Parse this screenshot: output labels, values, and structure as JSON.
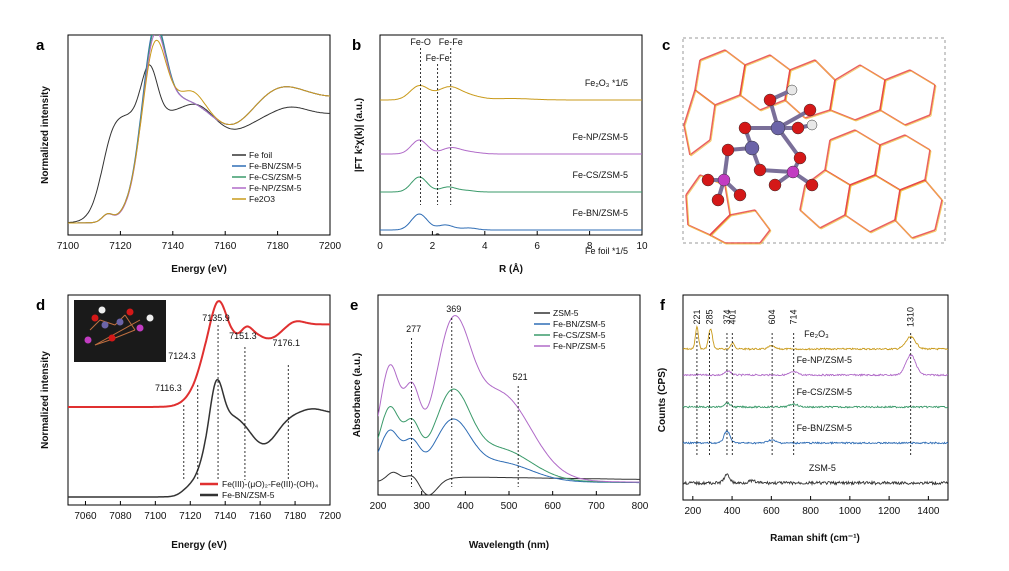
{
  "chart_data": [
    {
      "panel": "a",
      "type": "line",
      "xlabel": "Energy (eV)",
      "ylabel": "Normalized intensity",
      "xlim": [
        7100,
        7200
      ],
      "xticks": [
        7100,
        7120,
        7140,
        7160,
        7180,
        7200
      ],
      "legend": {
        "placement": "inside-right"
      },
      "series": [
        {
          "name": "Fe foil",
          "color": "#333333"
        },
        {
          "name": "Fe-BN/ZSM-5",
          "color": "#2f6db5"
        },
        {
          "name": "Fe-CS/ZSM-5",
          "color": "#3a9a6a"
        },
        {
          "name": "Fe-NP/ZSM-5",
          "color": "#b06ac8"
        },
        {
          "name": "Fe2O3",
          "color": "#c99a1a"
        }
      ]
    },
    {
      "panel": "b",
      "type": "line",
      "xlabel": "R (Å)",
      "ylabel": "|FT k²χ(k)| (a.u.)",
      "xlim": [
        0,
        10
      ],
      "xticks": [
        0,
        2,
        4,
        6,
        8,
        10
      ],
      "peak_labels": [
        "Fe-O",
        "Fe-Fe",
        "Fe-Fe"
      ],
      "peak_positions": [
        1.55,
        2.2,
        2.7
      ],
      "series": [
        {
          "name": "Fe₂O₃ *1/5",
          "color": "#c99a1a"
        },
        {
          "name": "Fe-NP/ZSM-5",
          "color": "#b06ac8"
        },
        {
          "name": "Fe-CS/ZSM-5",
          "color": "#3a9a6a"
        },
        {
          "name": "Fe-BN/ZSM-5",
          "color": "#2f6db5"
        },
        {
          "name": "Fe foil *1/5",
          "color": "#333333"
        }
      ]
    },
    {
      "panel": "c",
      "type": "structure",
      "description": ""
    },
    {
      "panel": "d",
      "type": "line",
      "xlabel": "Energy (eV)",
      "ylabel": "Normalized intensity",
      "xlim": [
        7050,
        7200
      ],
      "xticks": [
        7060,
        7080,
        7100,
        7120,
        7140,
        7160,
        7180,
        7200
      ],
      "peak_labels": [
        "7116.3",
        "7124.3",
        "7135.9",
        "7151.3",
        "7176.1"
      ],
      "peak_positions": [
        7116.3,
        7124.3,
        7135.9,
        7151.3,
        7176.1
      ],
      "legend": {
        "placement": "bottom-right"
      },
      "series": [
        {
          "name": "Fe(III)-(μO)₂-Fe(III)-(OH)₄",
          "color": "#e03030"
        },
        {
          "name": "Fe-BN/ZSM-5",
          "color": "#333333"
        }
      ]
    },
    {
      "panel": "e",
      "type": "line",
      "xlabel": "Wavelength (nm)",
      "ylabel": "Absorbance (a.u.)",
      "xlim": [
        200,
        800
      ],
      "xticks": [
        200,
        300,
        400,
        500,
        600,
        700,
        800
      ],
      "peak_labels": [
        "277",
        "369",
        "521"
      ],
      "peak_positions": [
        277,
        369,
        521
      ],
      "legend": {
        "placement": "top-right"
      },
      "series": [
        {
          "name": "ZSM-5",
          "color": "#333333"
        },
        {
          "name": "Fe-BN/ZSM-5",
          "color": "#2f6db5"
        },
        {
          "name": "Fe-CS/ZSM-5",
          "color": "#3a9a6a"
        },
        {
          "name": "Fe-NP/ZSM-5",
          "color": "#b06ac8"
        }
      ]
    },
    {
      "panel": "f",
      "type": "line",
      "xlabel": "Raman shift (cm⁻¹)",
      "ylabel": "Counts (CPS)",
      "xlim": [
        150,
        1500
      ],
      "xticks": [
        200,
        400,
        600,
        800,
        1000,
        1200,
        1400
      ],
      "peak_labels": [
        "221",
        "285",
        "374",
        "401",
        "604",
        "714",
        "1310"
      ],
      "peak_positions": [
        221,
        285,
        374,
        401,
        604,
        714,
        1310
      ],
      "series": [
        {
          "name": "Fe₂O₃",
          "color": "#c99a1a"
        },
        {
          "name": "Fe-NP/ZSM-5",
          "color": "#b06ac8"
        },
        {
          "name": "Fe-CS/ZSM-5",
          "color": "#3a9a6a"
        },
        {
          "name": "Fe-BN/ZSM-5",
          "color": "#2f6db5"
        },
        {
          "name": "ZSM-5",
          "color": "#333333"
        }
      ]
    }
  ]
}
